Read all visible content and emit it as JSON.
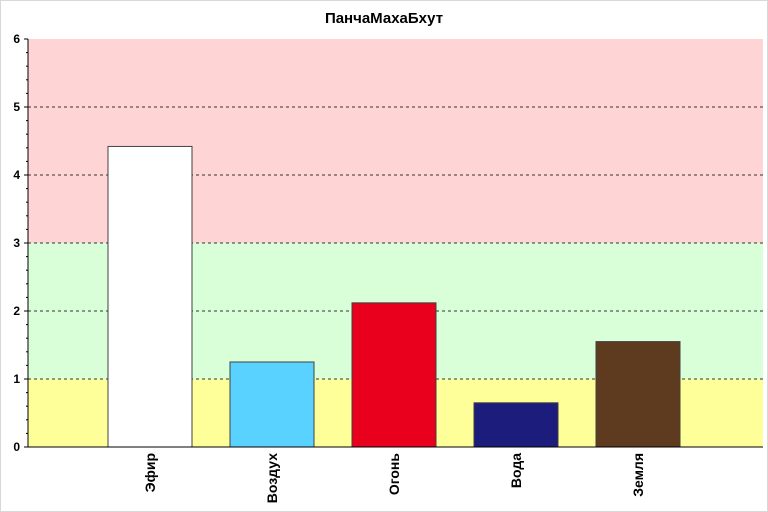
{
  "chart_data": {
    "type": "bar",
    "title": "ПанчаМахаБхут",
    "xlabel": "",
    "ylabel": "",
    "ylim": [
      0,
      6
    ],
    "yticks": [
      0,
      1,
      2,
      3,
      4,
      5,
      6
    ],
    "grid": "horizontal dashed",
    "categories": [
      "Эфир",
      "Воздух",
      "Огонь",
      "Вода",
      "Земля"
    ],
    "values": [
      4.42,
      1.25,
      2.12,
      0.65,
      1.55
    ],
    "bar_colors": [
      "#ffffff",
      "#5ad2ff",
      "#e8001c",
      "#1c1c7c",
      "#5e3a1e"
    ],
    "background_bands": [
      {
        "from": 0,
        "to": 1,
        "color": "#ffff99"
      },
      {
        "from": 1,
        "to": 3,
        "color": "#d8ffd8"
      },
      {
        "from": 3,
        "to": 6,
        "color": "#ffd4d4"
      }
    ]
  }
}
